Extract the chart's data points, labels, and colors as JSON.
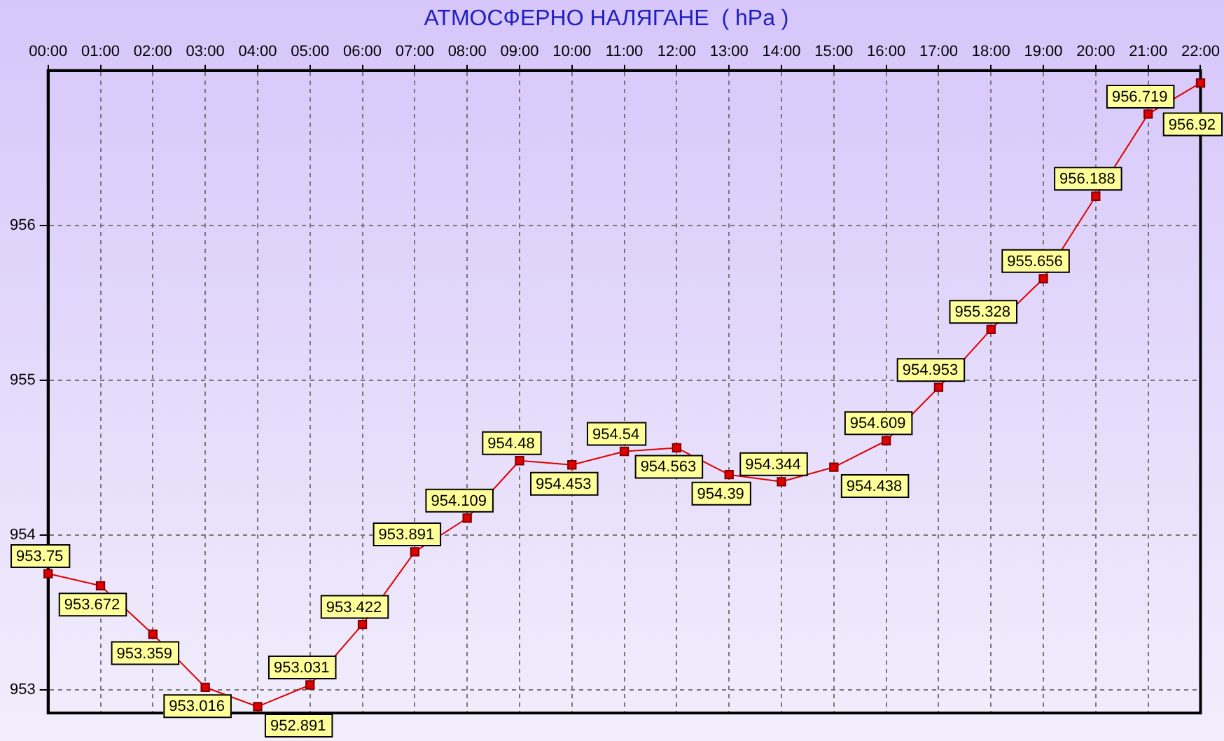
{
  "chart_data": {
    "type": "line",
    "title": "АТМОСФЕРНО НАЛЯГАНЕ  ( hPa )",
    "categories": [
      "00:00",
      "01:00",
      "02:00",
      "03:00",
      "04:00",
      "05:00",
      "06:00",
      "07:00",
      "08:00",
      "09:00",
      "10:00",
      "11:00",
      "12:00",
      "13:00",
      "14:00",
      "15:00",
      "16:00",
      "17:00",
      "18:00",
      "19:00",
      "20:00",
      "21:00",
      "22:00"
    ],
    "series": [
      {
        "color": "#e00000",
        "values": [
          953.75,
          953.672,
          953.359,
          953.016,
          952.891,
          953.031,
          953.422,
          953.891,
          954.109,
          954.48,
          954.453,
          954.54,
          954.563,
          954.39,
          954.344,
          954.438,
          954.609,
          954.953,
          955.328,
          955.656,
          956.188,
          956.719,
          956.92
        ]
      }
    ],
    "ylim": [
      952.85,
      957
    ],
    "yticks": [
      953,
      954,
      955,
      956
    ],
    "grid": true,
    "legend": false,
    "marker": "square",
    "line_style": "solid",
    "data_labels": true
  }
}
